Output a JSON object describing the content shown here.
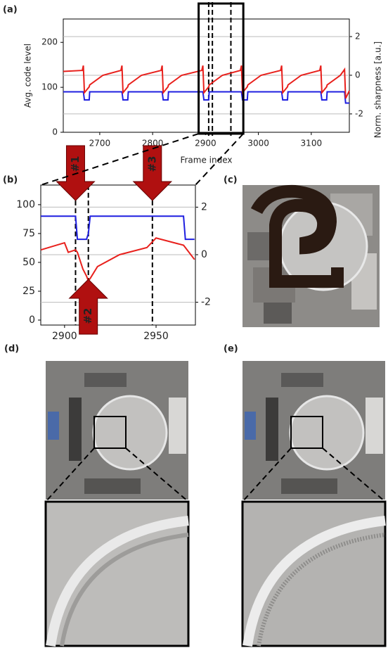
{
  "chart_data": [
    {
      "type": "line",
      "panel_label": "(a)",
      "xlabel": "Frame index",
      "ylabel": "Avg. code level",
      "y2label": "Norm. sharpness [a.u.]",
      "x": [
        2631,
        2667,
        2669,
        2671,
        2680,
        2681,
        2706,
        2740,
        2742,
        2744,
        2753,
        2754,
        2779,
        2816,
        2818,
        2820,
        2829,
        2830,
        2855,
        2893,
        2895,
        2897,
        2906,
        2907,
        2932,
        2966,
        2968,
        2970,
        2979,
        2980,
        3005,
        3042,
        3044,
        3046,
        3055,
        3056,
        3081,
        3116,
        3118,
        3120,
        3129,
        3130,
        3155,
        3163,
        3165,
        3172
      ],
      "series": [
        {
          "color": "#1f1fe0",
          "axis": "y",
          "values": [
            90,
            90,
            90,
            72,
            72,
            90,
            90,
            90,
            90,
            72,
            72,
            90,
            90,
            90,
            90,
            72,
            72,
            90,
            90,
            90,
            90,
            72,
            72,
            90,
            90,
            90,
            90,
            72,
            72,
            90,
            90,
            90,
            90,
            72,
            72,
            90,
            90,
            90,
            90,
            72,
            72,
            90,
            90,
            90,
            65,
            65
          ]
        },
        {
          "color": "#e8201c",
          "axis": "y2",
          "values": [
            0.2,
            0.25,
            0.5,
            -0.9,
            -0.6,
            -0.5,
            0,
            0.25,
            0.5,
            -0.9,
            -0.6,
            -0.5,
            0,
            0.25,
            0.5,
            -0.9,
            -0.6,
            -0.5,
            0,
            0.25,
            0.5,
            -0.9,
            -0.6,
            -0.5,
            0,
            0.25,
            0.5,
            -0.9,
            -0.6,
            -0.5,
            0,
            0.25,
            0.5,
            -0.9,
            -0.6,
            -0.5,
            0,
            0.25,
            0.5,
            -0.9,
            -0.6,
            -0.5,
            0,
            0.3,
            -1.2,
            -0.8
          ]
        }
      ],
      "xlim": [
        2631,
        3172
      ],
      "xticks": [
        2700,
        2800,
        2900,
        3000,
        3100
      ],
      "ylim": [
        0,
        252
      ],
      "yticks": [
        0,
        100,
        200
      ],
      "y2lim": [
        -2.95,
        2.91
      ],
      "y2ticks": [
        -2,
        0,
        2
      ],
      "grid": true,
      "vlines": [
        2906,
        2913,
        2948
      ]
    },
    {
      "type": "line",
      "panel_label": "(b)",
      "x": [
        2887,
        2900,
        2902,
        2906,
        2907,
        2910,
        2912,
        2913,
        2914,
        2918,
        2930,
        2945,
        2950,
        2960,
        2965,
        2966,
        2971
      ],
      "series": [
        {
          "color": "#1f1fe0",
          "axis": "y",
          "values": [
            90,
            90,
            90,
            90,
            70,
            70,
            70,
            75,
            90,
            90,
            90,
            90,
            90,
            90,
            90,
            70,
            70
          ]
        },
        {
          "color": "#e8201c",
          "axis": "y2",
          "values": [
            0.2,
            0.5,
            0.1,
            0.2,
            0.1,
            -0.6,
            -0.9,
            -1.1,
            -1.0,
            -0.5,
            0,
            0.3,
            0.7,
            0.5,
            0.4,
            0.3,
            -0.2
          ]
        }
      ],
      "xlim": [
        2887,
        2971.5
      ],
      "xticks": [
        2900,
        2950
      ],
      "ylim": [
        -4.3,
        117
      ],
      "yticks": [
        0,
        25,
        50,
        75,
        100
      ],
      "y2lim": [
        -2.96,
        2.93
      ],
      "y2ticks": [
        -2,
        0,
        2
      ],
      "grid": true,
      "vlines": [
        2906,
        2913,
        2948
      ],
      "arrows": [
        {
          "label": "#1",
          "x": 2906,
          "direction": "down"
        },
        {
          "label": "#2",
          "x": 2913,
          "direction": "up"
        },
        {
          "label": "#3",
          "x": 2948,
          "direction": "down"
        }
      ]
    }
  ],
  "panel_labels": [
    "(c)",
    "(d)",
    "(e)"
  ]
}
